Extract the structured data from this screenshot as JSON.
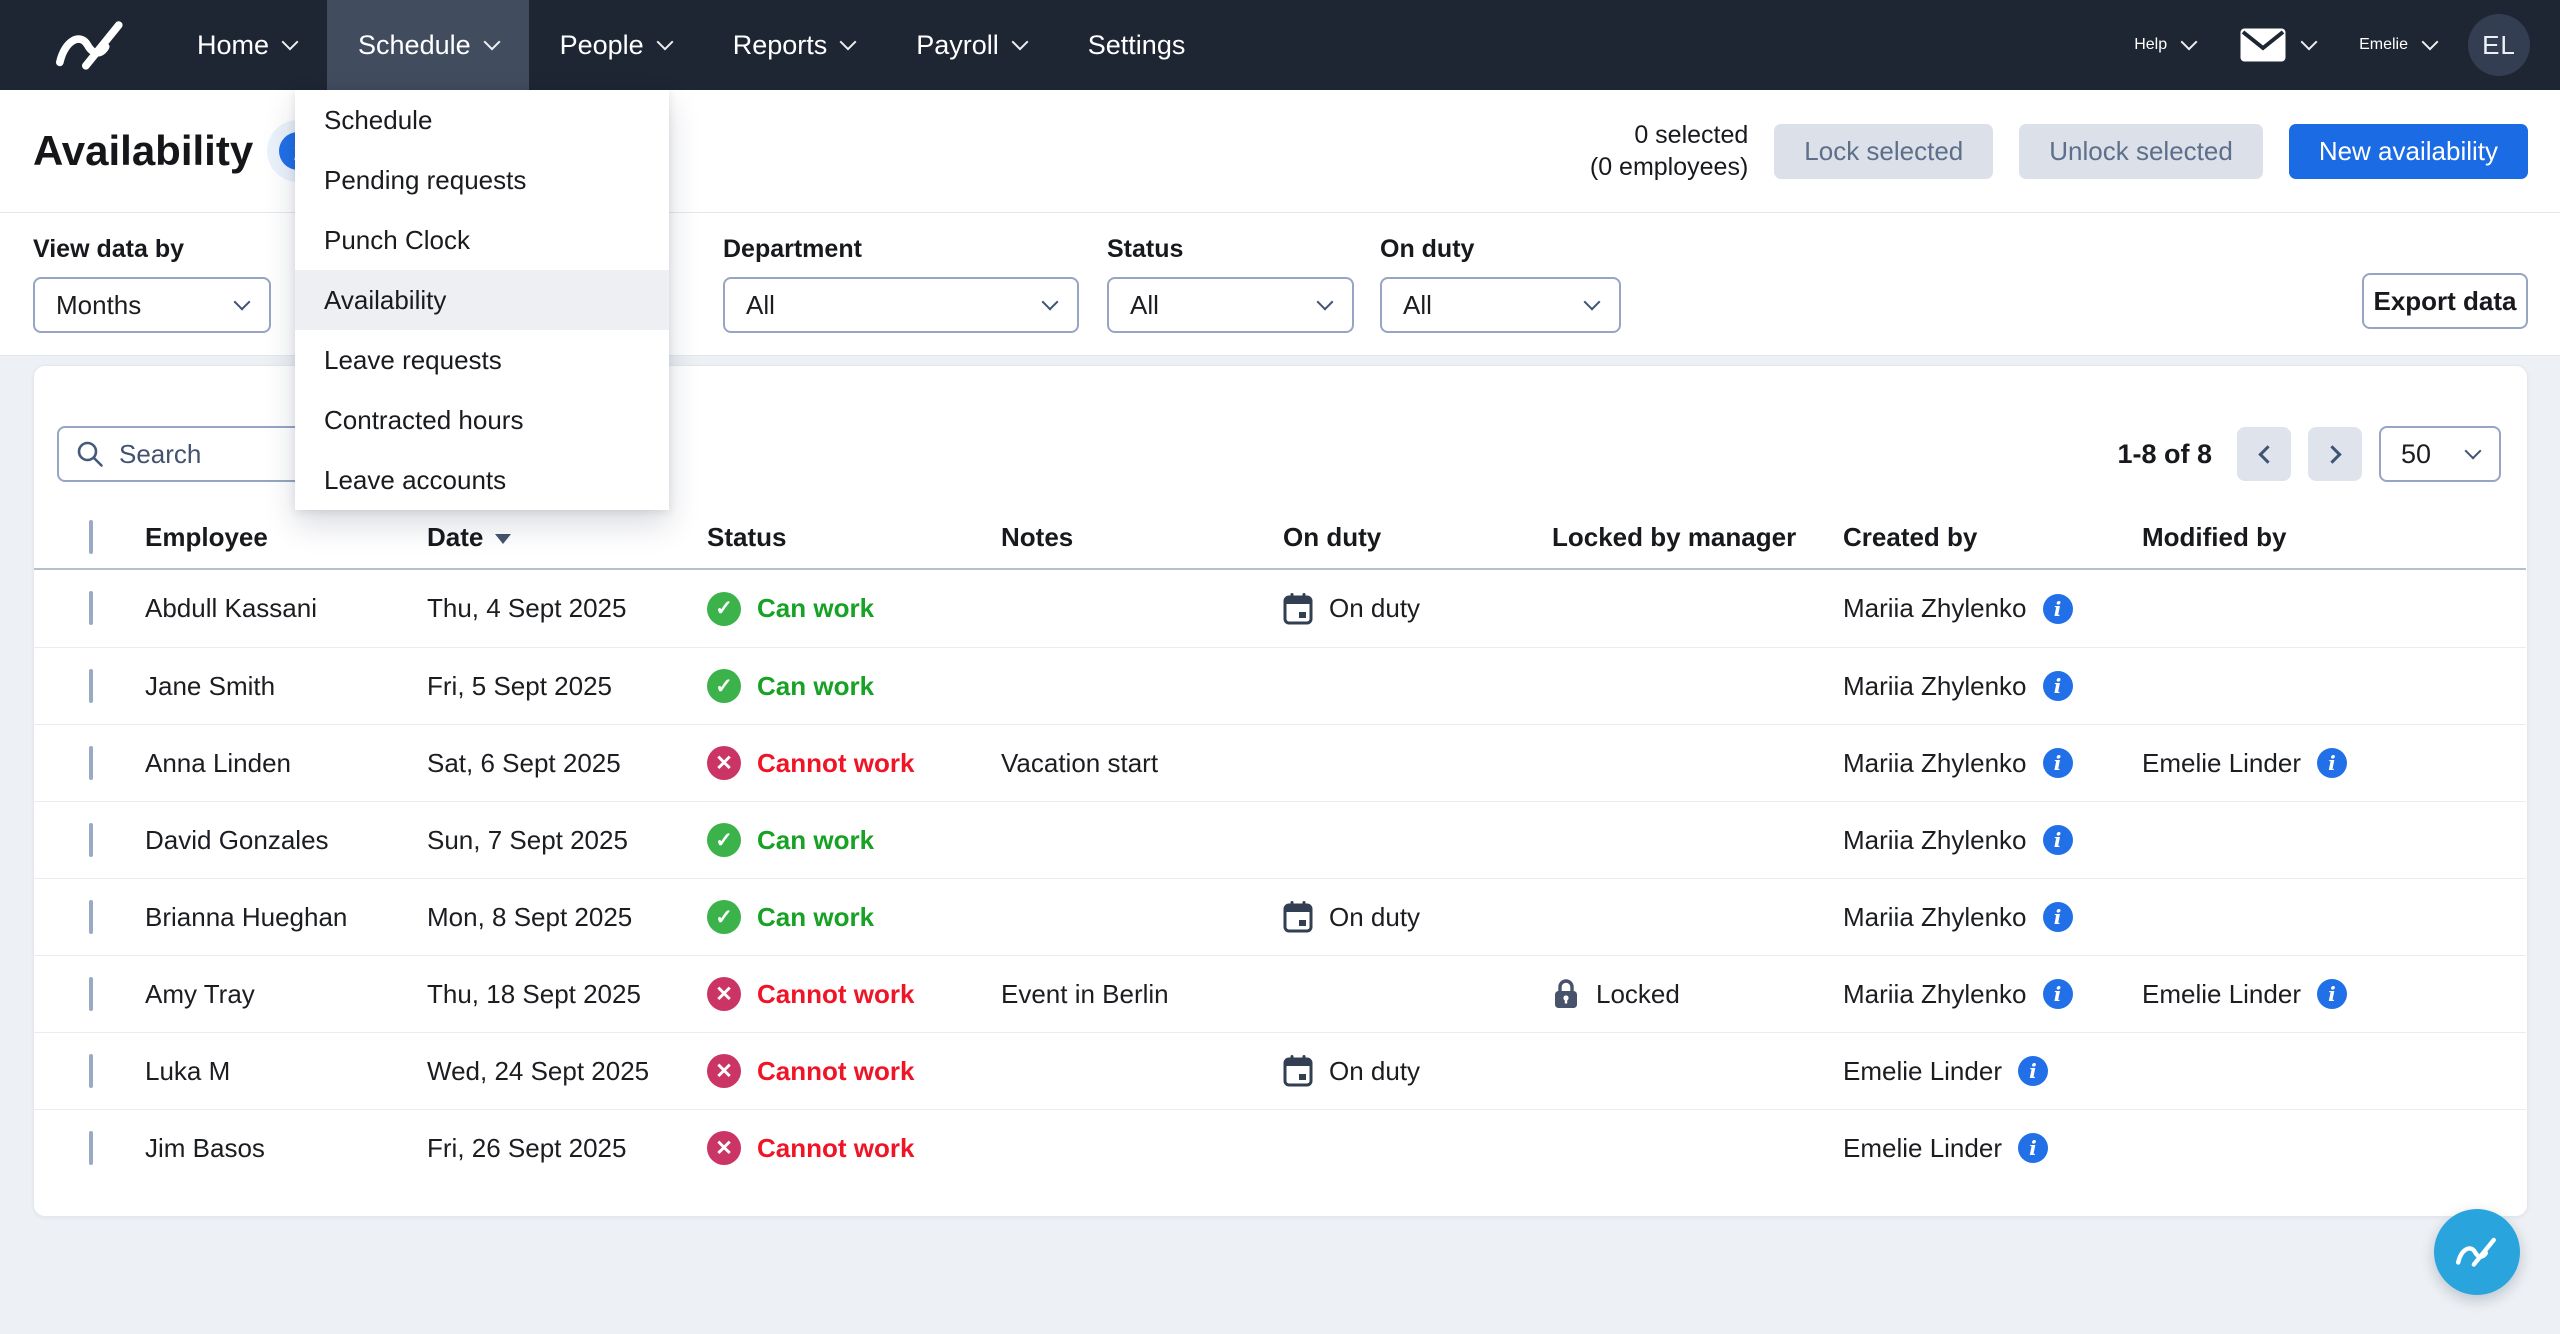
{
  "nav": {
    "brand": "planday-logo",
    "items": [
      {
        "label": "Home",
        "chevron": true,
        "active": false
      },
      {
        "label": "Schedule",
        "chevron": true,
        "active": true
      },
      {
        "label": "People",
        "chevron": true,
        "active": false
      },
      {
        "label": "Reports",
        "chevron": true,
        "active": false
      },
      {
        "label": "Payroll",
        "chevron": true,
        "active": false
      },
      {
        "label": "Settings",
        "chevron": false,
        "active": false
      }
    ],
    "right": {
      "help_label": "Help",
      "user_name": "Emelie",
      "avatar_initials": "EL"
    }
  },
  "schedule_menu": {
    "items": [
      "Schedule",
      "Pending requests",
      "Punch Clock",
      "Availability",
      "Leave requests",
      "Contracted hours",
      "Leave accounts"
    ],
    "active_item": "Availability"
  },
  "header": {
    "title": "Availability",
    "selected_line1": "0 selected",
    "selected_line2": "(0 employees)",
    "lock_label": "Lock selected",
    "unlock_label": "Unlock selected",
    "new_label": "New availability"
  },
  "filters": {
    "view_data_by": {
      "label": "View data by",
      "value": "Months"
    },
    "department": {
      "label": "Department",
      "value": "All"
    },
    "status": {
      "label": "Status",
      "value": "All"
    },
    "on_duty": {
      "label": "On duty",
      "value": "All"
    },
    "export_label": "Export data"
  },
  "table": {
    "search_placeholder": "Search",
    "pagination": {
      "range": "1-8 of 8",
      "page_size": "50"
    },
    "columns": [
      "Employee",
      "Date",
      "Status",
      "Notes",
      "On duty",
      "Locked by manager",
      "Created by",
      "Modified by"
    ],
    "sorted_column": "Date",
    "rows": [
      {
        "employee": "Abdull Kassani",
        "date": "Thu, 4 Sept 2025",
        "status": "Can work",
        "status_type": "can",
        "notes": "",
        "on_duty": "On duty",
        "locked": "",
        "created_by": "Mariia Zhylenko",
        "modified_by": ""
      },
      {
        "employee": "Jane Smith",
        "date": "Fri, 5 Sept 2025",
        "status": "Can work",
        "status_type": "can",
        "notes": "",
        "on_duty": "",
        "locked": "",
        "created_by": "Mariia Zhylenko",
        "modified_by": ""
      },
      {
        "employee": "Anna Linden",
        "date": "Sat, 6 Sept 2025",
        "status": "Cannot work",
        "status_type": "cannot",
        "notes": "Vacation start",
        "on_duty": "",
        "locked": "",
        "created_by": "Mariia Zhylenko",
        "modified_by": "Emelie Linder"
      },
      {
        "employee": "David Gonzales",
        "date": "Sun, 7 Sept 2025",
        "status": "Can work",
        "status_type": "can",
        "notes": "",
        "on_duty": "",
        "locked": "",
        "created_by": "Mariia Zhylenko",
        "modified_by": ""
      },
      {
        "employee": "Brianna Hueghan",
        "date": "Mon, 8 Sept 2025",
        "status": "Can work",
        "status_type": "can",
        "notes": "",
        "on_duty": "On duty",
        "locked": "",
        "created_by": "Mariia Zhylenko",
        "modified_by": ""
      },
      {
        "employee": "Amy Tray",
        "date": "Thu, 18 Sept 2025",
        "status": "Cannot work",
        "status_type": "cannot",
        "notes": "Event in Berlin",
        "on_duty": "",
        "locked": "Locked",
        "created_by": "Mariia Zhylenko",
        "modified_by": "Emelie Linder"
      },
      {
        "employee": "Luka M",
        "date": "Wed, 24 Sept 2025",
        "status": "Cannot work",
        "status_type": "cannot",
        "notes": "",
        "on_duty": "On duty",
        "locked": "",
        "created_by": "Emelie Linder",
        "modified_by": ""
      },
      {
        "employee": "Jim Basos",
        "date": "Fri, 26 Sept 2025",
        "status": "Cannot work",
        "status_type": "cannot",
        "notes": "",
        "on_duty": "",
        "locked": "",
        "created_by": "Emelie Linder",
        "modified_by": ""
      }
    ]
  },
  "colors": {
    "nav_bg": "#1e2533",
    "nav_active_bg": "#414c5f",
    "primary_blue": "#1a6be4",
    "info_blue": "#2170e8",
    "fab_blue": "#2aa4dc",
    "can_icon_green": "#3cb24b",
    "can_text_green": "#17a125",
    "cannot_icon_crimson": "#cb3566",
    "cannot_text_red": "#ef1526"
  }
}
